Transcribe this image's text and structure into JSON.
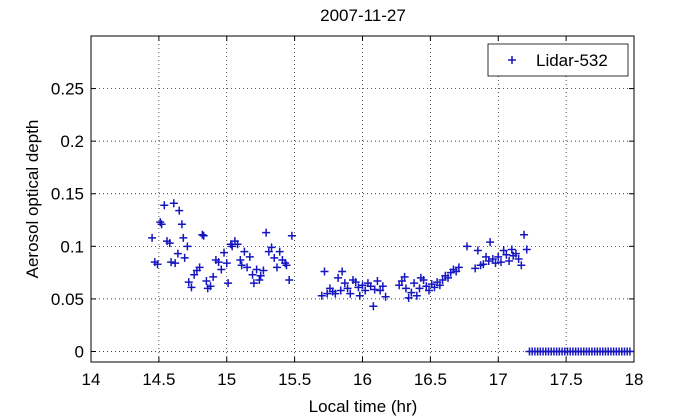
{
  "chart_data": {
    "type": "scatter",
    "title": "2007-11-27",
    "xlabel": "Local time (hr)",
    "ylabel": "Aerosol optical depth",
    "xlim": [
      14,
      18
    ],
    "ylim": [
      -0.01,
      0.3
    ],
    "xticks": [
      "14",
      "14.5",
      "15",
      "15.5",
      "16",
      "16.5",
      "17",
      "17.5",
      "18"
    ],
    "yticks": [
      "0",
      "0.05",
      "0.1",
      "0.15",
      "0.2",
      "0.25"
    ],
    "grid": true,
    "legend_position": "top-right",
    "series": [
      {
        "name": "Lidar-532",
        "color": "#1616c0",
        "marker": "plus",
        "points": [
          [
            14.45,
            0.108
          ],
          [
            14.47,
            0.085
          ],
          [
            14.49,
            0.083
          ],
          [
            14.51,
            0.123
          ],
          [
            14.52,
            0.121
          ],
          [
            14.54,
            0.139
          ],
          [
            14.56,
            0.105
          ],
          [
            14.58,
            0.103
          ],
          [
            14.59,
            0.085
          ],
          [
            14.61,
            0.141
          ],
          [
            14.62,
            0.084
          ],
          [
            14.64,
            0.093
          ],
          [
            14.65,
            0.134
          ],
          [
            14.67,
            0.121
          ],
          [
            14.68,
            0.108
          ],
          [
            14.69,
            0.089
          ],
          [
            14.71,
            0.1
          ],
          [
            14.72,
            0.066
          ],
          [
            14.74,
            0.061
          ],
          [
            14.76,
            0.073
          ],
          [
            14.78,
            0.077
          ],
          [
            14.8,
            0.08
          ],
          [
            14.82,
            0.111
          ],
          [
            14.83,
            0.11
          ],
          [
            14.85,
            0.067
          ],
          [
            14.86,
            0.06
          ],
          [
            14.88,
            0.062
          ],
          [
            14.9,
            0.071
          ],
          [
            14.92,
            0.087
          ],
          [
            14.94,
            0.085
          ],
          [
            14.96,
            0.078
          ],
          [
            14.98,
            0.094
          ],
          [
            15.0,
            0.084
          ],
          [
            15.01,
            0.065
          ],
          [
            15.03,
            0.102
          ],
          [
            15.04,
            0.1
          ],
          [
            15.06,
            0.105
          ],
          [
            15.08,
            0.102
          ],
          [
            15.1,
            0.087
          ],
          [
            15.11,
            0.082
          ],
          [
            15.13,
            0.095
          ],
          [
            15.15,
            0.08
          ],
          [
            15.17,
            0.09
          ],
          [
            15.19,
            0.073
          ],
          [
            15.2,
            0.065
          ],
          [
            15.22,
            0.078
          ],
          [
            15.24,
            0.068
          ],
          [
            15.25,
            0.072
          ],
          [
            15.27,
            0.077
          ],
          [
            15.29,
            0.113
          ],
          [
            15.31,
            0.095
          ],
          [
            15.33,
            0.099
          ],
          [
            15.35,
            0.089
          ],
          [
            15.37,
            0.08
          ],
          [
            15.39,
            0.095
          ],
          [
            15.41,
            0.087
          ],
          [
            15.43,
            0.084
          ],
          [
            15.44,
            0.082
          ],
          [
            15.46,
            0.068
          ],
          [
            15.48,
            0.11
          ],
          [
            15.7,
            0.053
          ],
          [
            15.72,
            0.076
          ],
          [
            15.74,
            0.055
          ],
          [
            15.76,
            0.06
          ],
          [
            15.78,
            0.057
          ],
          [
            15.8,
            0.055
          ],
          [
            15.82,
            0.07
          ],
          [
            15.84,
            0.058
          ],
          [
            15.85,
            0.076
          ],
          [
            15.87,
            0.065
          ],
          [
            15.89,
            0.06
          ],
          [
            15.91,
            0.055
          ],
          [
            15.93,
            0.068
          ],
          [
            15.95,
            0.066
          ],
          [
            15.97,
            0.061
          ],
          [
            15.98,
            0.053
          ],
          [
            16.0,
            0.063
          ],
          [
            16.02,
            0.058
          ],
          [
            16.04,
            0.065
          ],
          [
            16.06,
            0.062
          ],
          [
            16.08,
            0.043
          ],
          [
            16.09,
            0.059
          ],
          [
            16.11,
            0.067
          ],
          [
            16.13,
            0.058
          ],
          [
            16.15,
            0.062
          ],
          [
            16.17,
            0.052
          ],
          [
            16.27,
            0.063
          ],
          [
            16.29,
            0.067
          ],
          [
            16.31,
            0.071
          ],
          [
            16.32,
            0.06
          ],
          [
            16.34,
            0.051
          ],
          [
            16.36,
            0.056
          ],
          [
            16.38,
            0.065
          ],
          [
            16.4,
            0.053
          ],
          [
            16.42,
            0.06
          ],
          [
            16.43,
            0.07
          ],
          [
            16.45,
            0.068
          ],
          [
            16.47,
            0.062
          ],
          [
            16.49,
            0.058
          ],
          [
            16.51,
            0.064
          ],
          [
            16.53,
            0.061
          ],
          [
            16.55,
            0.066
          ],
          [
            16.57,
            0.063
          ],
          [
            16.59,
            0.068
          ],
          [
            16.61,
            0.072
          ],
          [
            16.63,
            0.07
          ],
          [
            16.65,
            0.075
          ],
          [
            16.67,
            0.078
          ],
          [
            16.69,
            0.076
          ],
          [
            16.71,
            0.08
          ],
          [
            16.77,
            0.1
          ],
          [
            16.83,
            0.079
          ],
          [
            16.85,
            0.096
          ],
          [
            16.87,
            0.082
          ],
          [
            16.89,
            0.083
          ],
          [
            16.91,
            0.09
          ],
          [
            16.93,
            0.086
          ],
          [
            16.94,
            0.104
          ],
          [
            16.96,
            0.088
          ],
          [
            16.98,
            0.084
          ],
          [
            17.0,
            0.09
          ],
          [
            17.02,
            0.085
          ],
          [
            17.04,
            0.096
          ],
          [
            17.06,
            0.092
          ],
          [
            17.08,
            0.086
          ],
          [
            17.1,
            0.097
          ],
          [
            17.11,
            0.091
          ],
          [
            17.13,
            0.093
          ],
          [
            17.15,
            0.088
          ],
          [
            17.17,
            0.082
          ],
          [
            17.19,
            0.111
          ],
          [
            17.21,
            0.097
          ],
          [
            17.23,
            0
          ],
          [
            17.25,
            0
          ],
          [
            17.27,
            0
          ],
          [
            17.29,
            0
          ],
          [
            17.31,
            0
          ],
          [
            17.33,
            0
          ],
          [
            17.35,
            0
          ],
          [
            17.37,
            0
          ],
          [
            17.39,
            0
          ],
          [
            17.41,
            0
          ],
          [
            17.43,
            0
          ],
          [
            17.45,
            0
          ],
          [
            17.47,
            0
          ],
          [
            17.49,
            0
          ],
          [
            17.51,
            0
          ],
          [
            17.53,
            0
          ],
          [
            17.55,
            0
          ],
          [
            17.57,
            0
          ],
          [
            17.59,
            0
          ],
          [
            17.61,
            0
          ],
          [
            17.63,
            0
          ],
          [
            17.65,
            0
          ],
          [
            17.67,
            0
          ],
          [
            17.69,
            0
          ],
          [
            17.71,
            0
          ],
          [
            17.73,
            0
          ],
          [
            17.75,
            0
          ],
          [
            17.77,
            0
          ],
          [
            17.79,
            0
          ],
          [
            17.81,
            0
          ],
          [
            17.83,
            0
          ],
          [
            17.85,
            0
          ],
          [
            17.87,
            0
          ],
          [
            17.89,
            0
          ],
          [
            17.91,
            0
          ],
          [
            17.93,
            0
          ],
          [
            17.95,
            0
          ],
          [
            17.97,
            0
          ]
        ]
      }
    ]
  }
}
